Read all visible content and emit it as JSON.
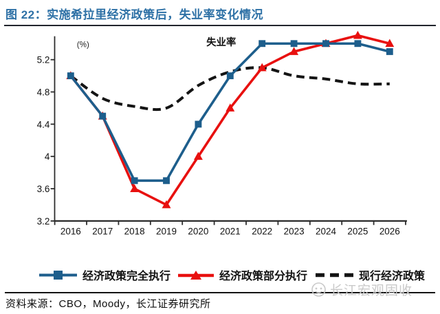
{
  "page": {
    "title": "图 22：实施希拉里经济政策后，失业率变化情况",
    "source": "资料来源：CBO，Moody，长江证券研究所",
    "watermark_text": "长江宏观固收"
  },
  "chart_data": {
    "type": "line",
    "title": "失业率",
    "y_axis_unit": "(%)",
    "categories": [
      "2016",
      "2017",
      "2018",
      "2019",
      "2020",
      "2021",
      "2022",
      "2023",
      "2024",
      "2025",
      "2026"
    ],
    "y_ticks": [
      "3.2",
      "3.6",
      "4",
      "4.4",
      "4.8",
      "5.2"
    ],
    "ylim": [
      3.2,
      5.55
    ],
    "grid": false,
    "legend_position": "bottom",
    "series": [
      {
        "name": "经济政策完全执行",
        "color": "#1d5e8c",
        "marker": "square",
        "line_style": "solid",
        "values": [
          5.0,
          4.5,
          3.7,
          3.7,
          4.4,
          5.0,
          5.4,
          5.4,
          5.4,
          5.4,
          5.3
        ]
      },
      {
        "name": "经济政策部分执行",
        "color": "#e8100f",
        "marker": "triangle",
        "line_style": "solid",
        "values": [
          5.0,
          4.5,
          3.6,
          3.4,
          4.0,
          4.6,
          5.1,
          5.3,
          5.4,
          5.5,
          5.4
        ]
      },
      {
        "name": "现行经济政策",
        "color": "#141414",
        "marker": "none",
        "line_style": "dashed",
        "values": [
          5.0,
          4.72,
          4.62,
          4.6,
          4.88,
          5.05,
          5.1,
          5.0,
          4.96,
          4.9,
          4.9
        ]
      }
    ]
  },
  "colors": {
    "title_blue": "#2e71a6",
    "axis": "#2b2b2b",
    "tick_text": "#111111",
    "rule_dark": "#20242c",
    "watermark_gray": "#c9c9c9"
  }
}
